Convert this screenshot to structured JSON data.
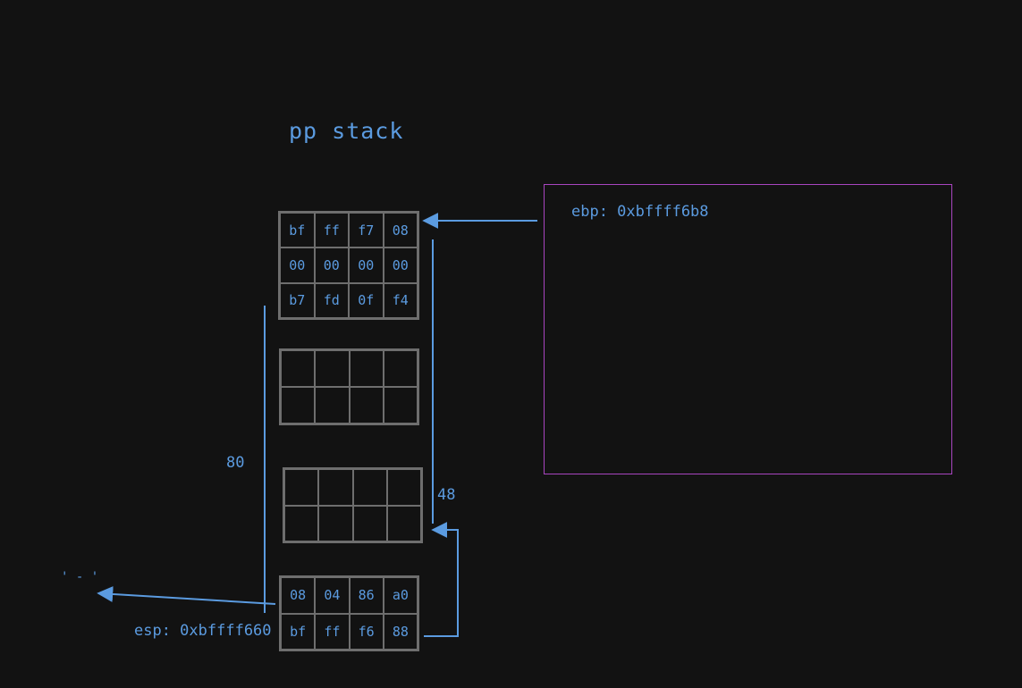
{
  "title": "pp stack",
  "colors": {
    "background": "#121212",
    "text": "#5b9be0",
    "arrow": "#5b9be0",
    "grid": "#6e6e6e",
    "frame": "#a845c0"
  },
  "stack": {
    "top_block": [
      [
        "bf",
        "ff",
        "f7",
        "08"
      ],
      [
        "00",
        "00",
        "00",
        "00"
      ],
      [
        "b7",
        "fd",
        "0f",
        "f4"
      ]
    ],
    "middle_block_1": [
      [
        "",
        "",
        "",
        ""
      ],
      [
        "",
        "",
        "",
        ""
      ]
    ],
    "middle_block_2": [
      [
        "",
        "",
        "",
        ""
      ],
      [
        "",
        "",
        "",
        ""
      ]
    ],
    "bottom_block": [
      [
        "08",
        "04",
        "86",
        "a0"
      ],
      [
        "bf",
        "ff",
        "f6",
        "88"
      ]
    ]
  },
  "labels": {
    "ebp": "ebp: 0xbffff6b8",
    "esp": "esp: 0xbffff660",
    "size_80": "80",
    "size_48": "48",
    "quote_mark": "' - '"
  }
}
